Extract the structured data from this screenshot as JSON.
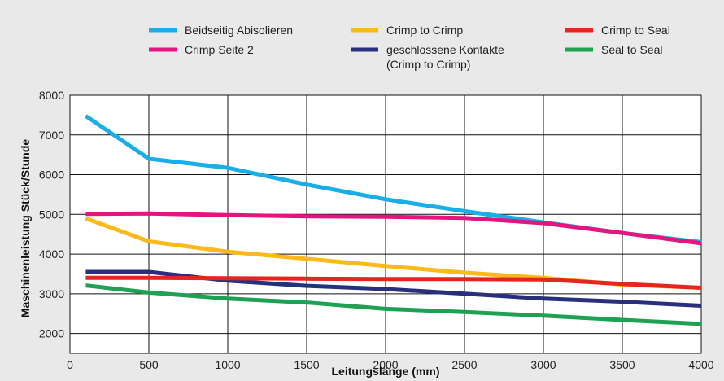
{
  "chart_data": {
    "type": "line",
    "xlabel": "Leitungslänge (mm)",
    "ylabel": "Maschinenleistung Stück/Stunde",
    "xlim": [
      0,
      4000
    ],
    "ylim": [
      1500,
      8000
    ],
    "x_ticks": [
      0,
      500,
      1000,
      1500,
      2000,
      2500,
      3000,
      3500,
      4000
    ],
    "y_ticks": [
      2000,
      3000,
      4000,
      5000,
      6000,
      7000,
      8000
    ],
    "x_tick_labels": [
      "0",
      "500",
      "1000",
      "1500",
      "2000",
      "2500",
      "3000",
      "3500",
      "4000"
    ],
    "y_tick_labels": [
      "2000",
      "3000",
      "4000",
      "5000",
      "6000",
      "7000",
      "8000"
    ],
    "grid": true,
    "legend_position": "top",
    "series": [
      {
        "name": "Beidseitig Abisolieren",
        "color": "#1aaee8",
        "points": [
          [
            100,
            7480
          ],
          [
            500,
            6400
          ],
          [
            1000,
            6170
          ],
          [
            1500,
            5750
          ],
          [
            2000,
            5380
          ],
          [
            2500,
            5080
          ],
          [
            3000,
            4800
          ],
          [
            3500,
            4530
          ],
          [
            4000,
            4300
          ]
        ]
      },
      {
        "name": "Crimp Seite 2",
        "color": "#e4157e",
        "points": [
          [
            100,
            5010
          ],
          [
            500,
            5020
          ],
          [
            1000,
            4980
          ],
          [
            1500,
            4950
          ],
          [
            2000,
            4940
          ],
          [
            2500,
            4910
          ],
          [
            3000,
            4780
          ],
          [
            3500,
            4530
          ],
          [
            4000,
            4270
          ]
        ]
      },
      {
        "name": "Crimp to Crimp",
        "color": "#fbb91a",
        "points": [
          [
            100,
            4900
          ],
          [
            500,
            4320
          ],
          [
            1000,
            4060
          ],
          [
            1500,
            3880
          ],
          [
            2000,
            3700
          ],
          [
            2500,
            3530
          ],
          [
            3000,
            3400
          ],
          [
            3500,
            3230
          ],
          [
            4000,
            3150
          ]
        ]
      },
      {
        "name": "geschlossene Kontakte\n(Crimp to Crimp)",
        "name_lines": [
          "geschlossene Kontakte",
          "(Crimp to Crimp)"
        ],
        "color": "#28307e",
        "points": [
          [
            100,
            3550
          ],
          [
            500,
            3550
          ],
          [
            1000,
            3330
          ],
          [
            1500,
            3200
          ],
          [
            2000,
            3120
          ],
          [
            2500,
            3000
          ],
          [
            3000,
            2880
          ],
          [
            3500,
            2800
          ],
          [
            4000,
            2700
          ]
        ]
      },
      {
        "name": "Crimp to Seal",
        "color": "#e52620",
        "points": [
          [
            100,
            3400
          ],
          [
            500,
            3400
          ],
          [
            1000,
            3390
          ],
          [
            1500,
            3380
          ],
          [
            2000,
            3370
          ],
          [
            2500,
            3370
          ],
          [
            3000,
            3360
          ],
          [
            3500,
            3250
          ],
          [
            4000,
            3150
          ]
        ]
      },
      {
        "name": "Seal to Seal",
        "color": "#1fa154",
        "points": [
          [
            100,
            3210
          ],
          [
            500,
            3030
          ],
          [
            1000,
            2880
          ],
          [
            1500,
            2780
          ],
          [
            2000,
            2620
          ],
          [
            2500,
            2540
          ],
          [
            3000,
            2450
          ],
          [
            3500,
            2340
          ],
          [
            4000,
            2240
          ]
        ]
      }
    ]
  }
}
